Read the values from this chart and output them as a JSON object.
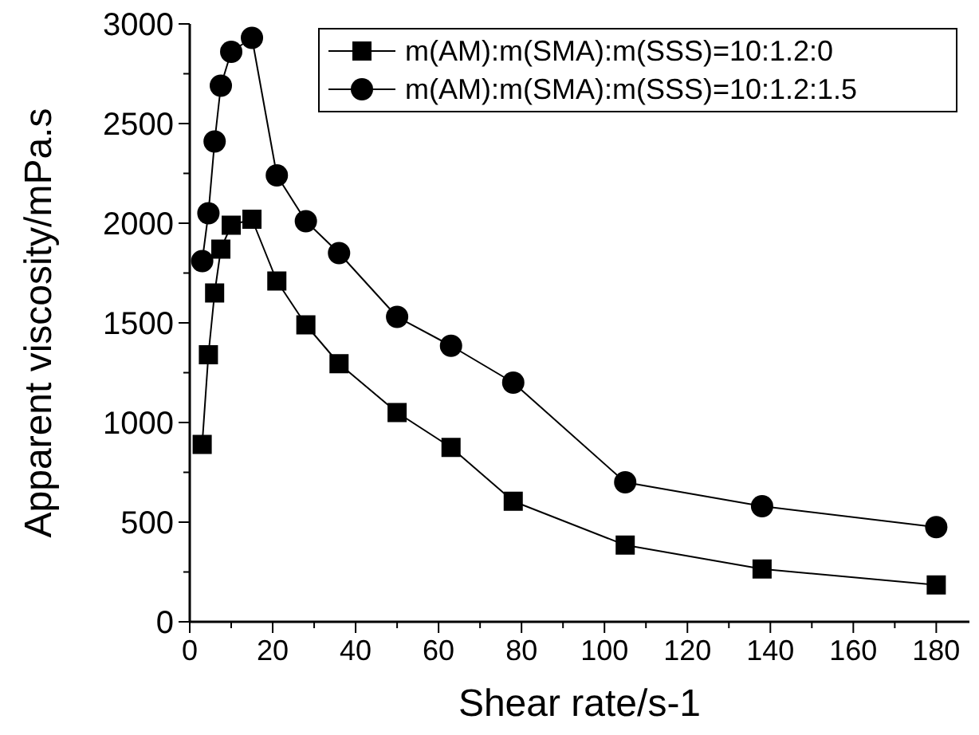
{
  "chart_data": {
    "type": "line",
    "xlabel": "Shear rate/s-1",
    "ylabel": "Apparent viscosity/mPa.s",
    "x": [
      3,
      4.5,
      6,
      7.5,
      10,
      15,
      21,
      28,
      36,
      50,
      63,
      78,
      105,
      138,
      180
    ],
    "series": [
      {
        "name": "m(AM):m(SMA):m(SSS)=10:1.2:0",
        "color": "#000000",
        "marker": "square",
        "values": [
          890,
          1340,
          1650,
          1870,
          1990,
          2020,
          1710,
          1490,
          1295,
          1050,
          875,
          605,
          385,
          265,
          185
        ]
      },
      {
        "name": "m(AM):m(SMA):m(SSS)=10:1.2:1.5",
        "color": "#000000",
        "marker": "circle",
        "values": [
          1810,
          2050,
          2410,
          2690,
          2860,
          2930,
          2240,
          2010,
          1850,
          1530,
          1385,
          1200,
          700,
          580,
          475
        ]
      }
    ],
    "xlim": [
      0,
      188
    ],
    "xticks": [
      0,
      {
        "value": 10,
        "label": null
      },
      20,
      {
        "value": 30,
        "label": null
      },
      40,
      {
        "value": 50,
        "label": null
      },
      60,
      {
        "value": 70,
        "label": null
      },
      80,
      {
        "value": 90,
        "label": null
      },
      100,
      {
        "value": 110,
        "label": null
      },
      120,
      {
        "value": 130,
        "label": null
      },
      140,
      {
        "value": 150,
        "label": null
      },
      160,
      {
        "value": 170,
        "label": null
      },
      180
    ],
    "ylim": [
      0,
      3000
    ],
    "yticks": [
      0,
      {
        "value": 250,
        "label": null
      },
      500,
      {
        "value": 750,
        "label": null
      },
      1000,
      {
        "value": 1250,
        "label": null
      },
      1500,
      {
        "value": 1750,
        "label": null
      },
      2000,
      {
        "value": 2250,
        "label": null
      },
      2500,
      {
        "value": 2750,
        "label": null
      },
      3000
    ],
    "grid": false,
    "legend": "top right",
    "line_style": "solid"
  }
}
